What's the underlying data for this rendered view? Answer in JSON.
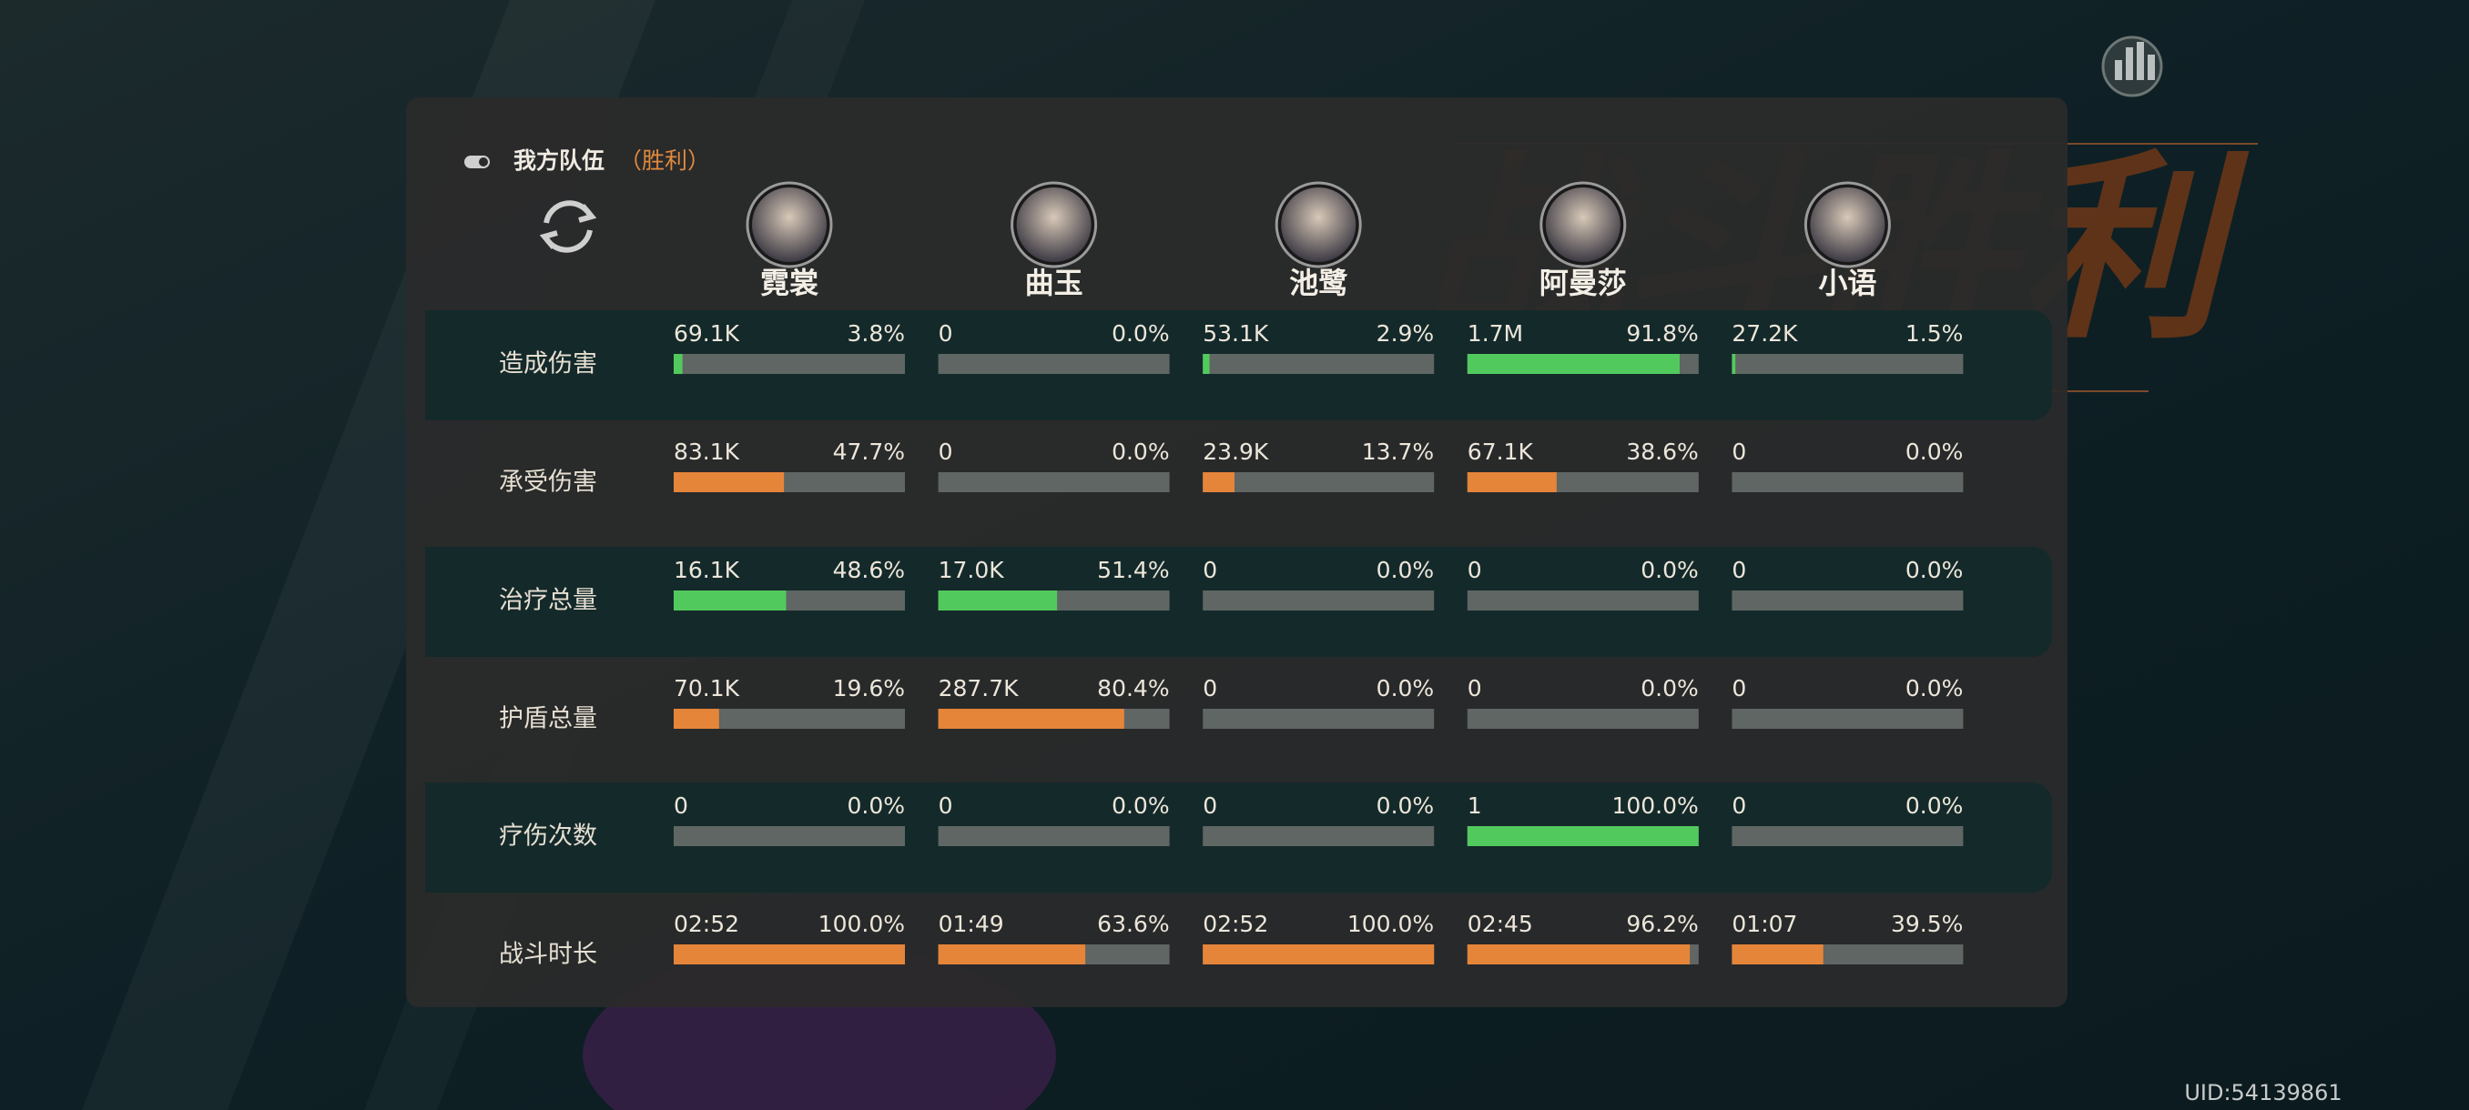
{
  "background_title": "战斗胜利",
  "header": {
    "title": "我方队伍",
    "result": "（胜利）"
  },
  "characters": [
    "霓裳",
    "曲玉",
    "池鹭",
    "阿曼莎",
    "小语"
  ],
  "rows": [
    {
      "label": "造成伤害",
      "color": "#52c95d",
      "cells": [
        {
          "value": "69.1K",
          "percent": 3.8,
          "percent_label": "3.8%"
        },
        {
          "value": "0",
          "percent": 0,
          "percent_label": "0.0%"
        },
        {
          "value": "53.1K",
          "percent": 2.9,
          "percent_label": "2.9%"
        },
        {
          "value": "1.7M",
          "percent": 91.8,
          "percent_label": "91.8%"
        },
        {
          "value": "27.2K",
          "percent": 1.5,
          "percent_label": "1.5%"
        }
      ]
    },
    {
      "label": "承受伤害",
      "color": "#e5853a",
      "cells": [
        {
          "value": "83.1K",
          "percent": 47.7,
          "percent_label": "47.7%"
        },
        {
          "value": "0",
          "percent": 0,
          "percent_label": "0.0%"
        },
        {
          "value": "23.9K",
          "percent": 13.7,
          "percent_label": "13.7%"
        },
        {
          "value": "67.1K",
          "percent": 38.6,
          "percent_label": "38.6%"
        },
        {
          "value": "0",
          "percent": 0,
          "percent_label": "0.0%"
        }
      ]
    },
    {
      "label": "治疗总量",
      "color": "#52c95d",
      "cells": [
        {
          "value": "16.1K",
          "percent": 48.6,
          "percent_label": "48.6%"
        },
        {
          "value": "17.0K",
          "percent": 51.4,
          "percent_label": "51.4%"
        },
        {
          "value": "0",
          "percent": 0,
          "percent_label": "0.0%"
        },
        {
          "value": "0",
          "percent": 0,
          "percent_label": "0.0%"
        },
        {
          "value": "0",
          "percent": 0,
          "percent_label": "0.0%"
        }
      ]
    },
    {
      "label": "护盾总量",
      "color": "#e5853a",
      "cells": [
        {
          "value": "70.1K",
          "percent": 19.6,
          "percent_label": "19.6%"
        },
        {
          "value": "287.7K",
          "percent": 80.4,
          "percent_label": "80.4%"
        },
        {
          "value": "0",
          "percent": 0,
          "percent_label": "0.0%"
        },
        {
          "value": "0",
          "percent": 0,
          "percent_label": "0.0%"
        },
        {
          "value": "0",
          "percent": 0,
          "percent_label": "0.0%"
        }
      ]
    },
    {
      "label": "疗伤次数",
      "color": "#52c95d",
      "cells": [
        {
          "value": "0",
          "percent": 0,
          "percent_label": "0.0%"
        },
        {
          "value": "0",
          "percent": 0,
          "percent_label": "0.0%"
        },
        {
          "value": "0",
          "percent": 0,
          "percent_label": "0.0%"
        },
        {
          "value": "1",
          "percent": 100.0,
          "percent_label": "100.0%"
        },
        {
          "value": "0",
          "percent": 0,
          "percent_label": "0.0%"
        }
      ]
    },
    {
      "label": "战斗时长",
      "color": "#e5853a",
      "cells": [
        {
          "value": "02:52",
          "percent": 100.0,
          "percent_label": "100.0%"
        },
        {
          "value": "01:49",
          "percent": 63.6,
          "percent_label": "63.6%"
        },
        {
          "value": "02:52",
          "percent": 100.0,
          "percent_label": "100.0%"
        },
        {
          "value": "02:45",
          "percent": 96.2,
          "percent_label": "96.2%"
        },
        {
          "value": "01:07",
          "percent": 39.5,
          "percent_label": "39.5%"
        }
      ]
    }
  ],
  "uid": "UID:54139861"
}
